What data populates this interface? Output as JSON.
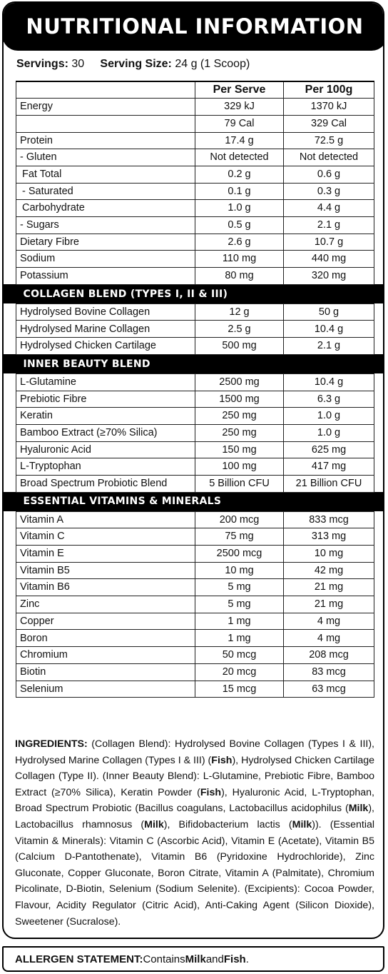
{
  "title": "NUTRITIONAL INFORMATION",
  "servings_label": "Servings:",
  "servings_value": "30",
  "serving_size_label": "Serving Size:",
  "serving_size_value": "24 g (1 Scoop)",
  "headers": {
    "per_serve": "Per Serve",
    "per_100g": "Per 100g"
  },
  "nutrition": [
    {
      "name": "Energy",
      "serve": "329 kJ",
      "per100": "1370 kJ"
    },
    {
      "name": "",
      "serve": "79 Cal",
      "per100": "329 Cal"
    },
    {
      "name": "Protein",
      "serve": "17.4 g",
      "per100": "72.5 g"
    },
    {
      "name": "- Gluten",
      "serve": "Not detected",
      "per100": "Not detected"
    },
    {
      "name": "Fat Total",
      "serve": "0.2 g",
      "per100": "0.6 g"
    },
    {
      "name": "- Saturated",
      "serve": "0.1 g",
      "per100": "0.3 g"
    },
    {
      "name": "Carbohydrate",
      "serve": "1.0 g",
      "per100": "4.4 g"
    },
    {
      "name": "- Sugars",
      "serve": "0.5 g",
      "per100": "2.1 g"
    },
    {
      "name": "Dietary Fibre",
      "serve": "2.6 g",
      "per100": "10.7 g"
    },
    {
      "name": "Sodium",
      "serve": "110 mg",
      "per100": "440 mg"
    },
    {
      "name": "Potassium",
      "serve": "80 mg",
      "per100": "320 mg"
    }
  ],
  "collagen_title": "COLLAGEN BLEND (TYPES I, II & III)",
  "collagen": [
    {
      "name": "Hydrolysed Bovine Collagen",
      "serve": "12 g",
      "per100": "50 g"
    },
    {
      "name": "Hydrolysed Marine Collagen",
      "serve": "2.5 g",
      "per100": "10.4 g"
    },
    {
      "name": "Hydrolysed Chicken Cartilage",
      "serve": "500 mg",
      "per100": "2.1 g"
    }
  ],
  "beauty_title": "INNER BEAUTY BLEND",
  "beauty": [
    {
      "name": "L-Glutamine",
      "serve": "2500 mg",
      "per100": "10.4 g"
    },
    {
      "name": "Prebiotic Fibre",
      "serve": "1500 mg",
      "per100": "6.3 g"
    },
    {
      "name": "Keratin",
      "serve": "250 mg",
      "per100": "1.0 g"
    },
    {
      "name": "Bamboo Extract (≥70% Silica)",
      "serve": "250 mg",
      "per100": "1.0 g"
    },
    {
      "name": "Hyaluronic Acid",
      "serve": "150 mg",
      "per100": "625 mg"
    },
    {
      "name": "L-Tryptophan",
      "serve": "100 mg",
      "per100": "417 mg"
    },
    {
      "name": "Broad Spectrum Probiotic Blend",
      "serve": "5 Billion CFU",
      "per100": "21 Billion CFU"
    }
  ],
  "vitamins_title": "ESSENTIAL VITAMINS & MINERALS",
  "vitamins": [
    {
      "name": "Vitamin A",
      "serve": "200 mcg",
      "per100": "833 mcg"
    },
    {
      "name": "Vitamin C",
      "serve": "75 mg",
      "per100": "313 mg"
    },
    {
      "name": "Vitamin E",
      "serve": "2500 mcg",
      "per100": "10 mg"
    },
    {
      "name": "Vitamin B5",
      "serve": "10 mg",
      "per100": "42 mg"
    },
    {
      "name": "Vitamin B6",
      "serve": "5 mg",
      "per100": "21 mg"
    },
    {
      "name": "Zinc",
      "serve": "5 mg",
      "per100": "21 mg"
    },
    {
      "name": "Copper",
      "serve": "1 mg",
      "per100": "4 mg"
    },
    {
      "name": "Boron",
      "serve": "1 mg",
      "per100": "4 mg"
    },
    {
      "name": "Chromium",
      "serve": "50 mcg",
      "per100": "208 mcg"
    },
    {
      "name": "Biotin",
      "serve": "20 mcg",
      "per100": "83 mcg"
    },
    {
      "name": "Selenium",
      "serve": "15 mcg",
      "per100": "63 mcg"
    }
  ],
  "ingredients": {
    "label": "INGREDIENTS:",
    "p1": " (Collagen Blend): Hydrolysed Bovine Collagen (Types I & III), Hydrolysed Marine Collagen (Types I & III) (",
    "fish1": "Fish",
    "p2": "), Hydrolysed Chicken Cartilage Collagen (Type II). (Inner Beauty Blend): L-Glutamine, Prebiotic Fibre, Bamboo Extract (≥70% Silica), Keratin Powder (",
    "fish2": "Fish",
    "p3": "), Hyaluronic Acid, L-Tryptophan, Broad Spectrum Probiotic (Bacillus coagulans, Lactobacillus acidophilus (",
    "milk1": "Milk",
    "p4": "), Lactobacillus rhamnosus (",
    "milk2": "Milk",
    "p5": "), Bifidobacterium lactis (",
    "milk3": "Milk",
    "p6": ")). (Essential Vitamin & Minerals): Vitamin C (Ascorbic Acid), Vitamin E (Acetate), Vitamin B5 (Calcium D-Pantothenate), Vitamin B6 (Pyridoxine Hydrochloride), Zinc Gluconate, Copper Gluconate, Boron Citrate, Vitamin A (Palmitate), Chromium Picolinate, D-Biotin, Selenium (Sodium Selenite). (Excipients): Cocoa Powder, Flavour, Acidity Regulator (Citric Acid), Anti-Caking Agent (Silicon Dioxide), Sweetener (Sucralose)."
  },
  "allergen": {
    "label": "ALLERGEN STATEMENT:",
    "p1": " Contains ",
    "milk": "Milk",
    "p2": " and ",
    "fish": "Fish",
    "p3": "."
  }
}
